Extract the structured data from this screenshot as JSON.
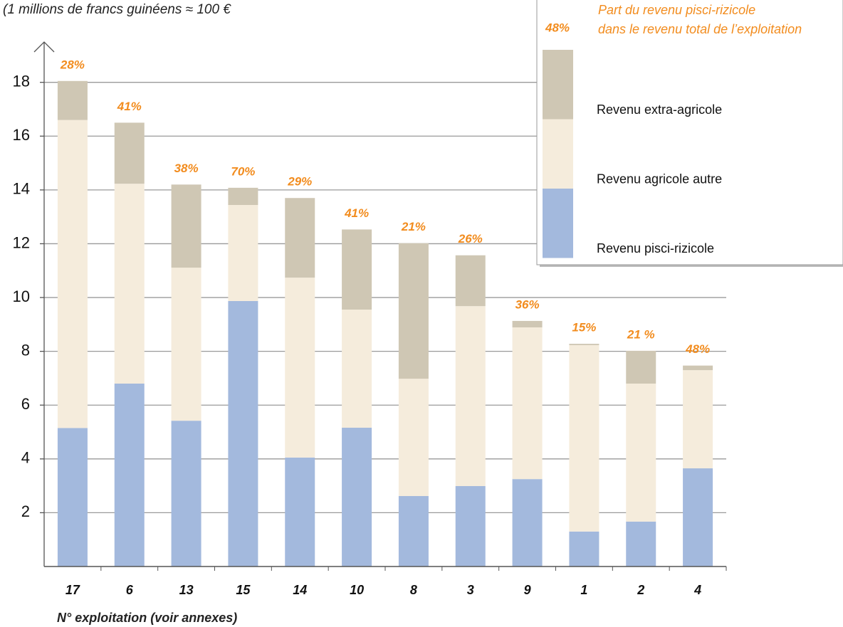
{
  "chart_data": {
    "type": "stacked_bar",
    "subtitle": "(1 millions de francs guinéens ≈ 100 €",
    "x_label": "N° exploitation (voir annexes)",
    "categories": [
      "17",
      "6",
      "13",
      "15",
      "14",
      "10",
      "8",
      "3",
      "9",
      "1",
      "2",
      "4"
    ],
    "series": [
      {
        "name": "Revenu pisci-rizicole",
        "color": "#a3b9dd",
        "values": [
          5.15,
          6.8,
          5.42,
          9.87,
          4.05,
          5.16,
          2.62,
          2.99,
          3.25,
          1.3,
          1.67,
          3.65
        ]
      },
      {
        "name": "Revenu agricole autre",
        "color": "#f5ecdc",
        "values": [
          11.45,
          7.43,
          5.69,
          3.57,
          6.69,
          4.39,
          4.36,
          6.69,
          5.64,
          6.93,
          5.13,
          3.65
        ]
      },
      {
        "name": "Revenu extra-agricole",
        "color": "#cfc7b4",
        "values": [
          1.45,
          2.27,
          3.09,
          0.64,
          2.96,
          2.98,
          5.04,
          1.89,
          0.24,
          0.05,
          1.22,
          0.17
        ]
      }
    ],
    "share": {
      "name": [
        "Part du revenu pisci-rizicole",
        "dans le revenu total de l’exploitation"
      ],
      "color": "#f28c1e",
      "legend_sample": "48%",
      "values": [
        28,
        41,
        38,
        70,
        29,
        41,
        21,
        26,
        36,
        15,
        21,
        48
      ],
      "value_labels": [
        "28%",
        "41%",
        "38%",
        "70%",
        "29%",
        "41%",
        "21%",
        "26%",
        "36%",
        "15%",
        "21 %",
        "48%"
      ]
    },
    "ylim": [
      0,
      19.5
    ],
    "yticks": [
      2,
      4,
      6,
      8,
      10,
      12,
      14,
      16,
      18
    ],
    "grid": true
  }
}
